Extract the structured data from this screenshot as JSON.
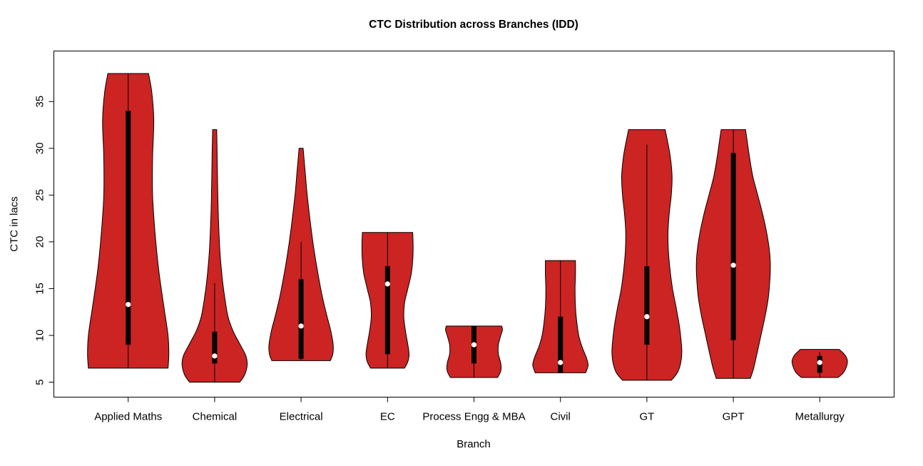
{
  "chart_data": {
    "type": "violin",
    "title": "CTC Distribution across Branches (IDD)",
    "xlabel": "Branch",
    "ylabel": "CTC in lacs",
    "ylim": [
      3.4,
      40.4
    ],
    "yticks": [
      5,
      10,
      15,
      20,
      25,
      30,
      35
    ],
    "grid": false,
    "legend": "none",
    "fill_color": "#CB2423",
    "outline_color": "#000000",
    "categories": [
      "Applied Maths",
      "Chemical",
      "Electrical",
      "EC",
      "Process Engg & MBA",
      "Civil",
      "GT",
      "GPT",
      "Metallurgy"
    ],
    "violins": [
      {
        "branch": "Applied Maths",
        "min": 6.5,
        "max": 38,
        "q1": 9,
        "median": 13.3,
        "q3": 34,
        "whisker_low": 6.5,
        "whisker_high": 38,
        "profile": [
          [
            6.5,
            0.98
          ],
          [
            8,
            1.0
          ],
          [
            10,
            0.98
          ],
          [
            13,
            0.88
          ],
          [
            17,
            0.75
          ],
          [
            21,
            0.66
          ],
          [
            25,
            0.6
          ],
          [
            29,
            0.6
          ],
          [
            33,
            0.63
          ],
          [
            36,
            0.58
          ],
          [
            38,
            0.5
          ]
        ]
      },
      {
        "branch": "Chemical",
        "min": 5,
        "max": 32,
        "q1": 7,
        "median": 7.8,
        "q3": 10.4,
        "whisker_low": 5,
        "whisker_high": 15.6,
        "profile": [
          [
            5,
            0.62
          ],
          [
            5.8,
            0.74
          ],
          [
            6.8,
            0.8
          ],
          [
            7.8,
            0.77
          ],
          [
            9,
            0.63
          ],
          [
            10.5,
            0.45
          ],
          [
            12,
            0.33
          ],
          [
            14,
            0.25
          ],
          [
            16,
            0.19
          ],
          [
            19,
            0.13
          ],
          [
            23,
            0.09
          ],
          [
            27,
            0.07
          ],
          [
            30,
            0.06
          ],
          [
            32,
            0.05
          ]
        ]
      },
      {
        "branch": "Electrical",
        "min": 7.3,
        "max": 30,
        "q1": 7.5,
        "median": 11,
        "q3": 16,
        "whisker_low": 7.3,
        "whisker_high": 20,
        "profile": [
          [
            7.3,
            0.72
          ],
          [
            8,
            0.78
          ],
          [
            9,
            0.79
          ],
          [
            10.5,
            0.73
          ],
          [
            12,
            0.64
          ],
          [
            14,
            0.53
          ],
          [
            16,
            0.44
          ],
          [
            18,
            0.36
          ],
          [
            20,
            0.29
          ],
          [
            22,
            0.23
          ],
          [
            25,
            0.15
          ],
          [
            27.5,
            0.1
          ],
          [
            30,
            0.05
          ]
        ]
      },
      {
        "branch": "EC",
        "min": 6.5,
        "max": 21,
        "q1": 8,
        "median": 15.5,
        "q3": 17.4,
        "whisker_low": 6.5,
        "whisker_high": 21,
        "profile": [
          [
            6.5,
            0.42
          ],
          [
            7.2,
            0.5
          ],
          [
            8,
            0.53
          ],
          [
            9,
            0.5
          ],
          [
            10.5,
            0.44
          ],
          [
            12,
            0.4
          ],
          [
            13.5,
            0.42
          ],
          [
            15,
            0.5
          ],
          [
            16.5,
            0.58
          ],
          [
            18,
            0.62
          ],
          [
            19.5,
            0.63
          ],
          [
            21,
            0.62
          ]
        ]
      },
      {
        "branch": "Process Engg & MBA",
        "min": 5.5,
        "max": 11,
        "q1": 7,
        "median": 9,
        "q3": 11,
        "whisker_low": 5.5,
        "whisker_high": 11,
        "profile": [
          [
            5.5,
            0.58
          ],
          [
            6.2,
            0.66
          ],
          [
            7,
            0.66
          ],
          [
            8,
            0.6
          ],
          [
            9,
            0.6
          ],
          [
            10,
            0.66
          ],
          [
            10.6,
            0.7
          ],
          [
            11,
            0.68
          ]
        ]
      },
      {
        "branch": "Civil",
        "min": 6,
        "max": 18,
        "q1": 6,
        "median": 7.1,
        "q3": 12,
        "whisker_low": 6,
        "whisker_high": 18,
        "profile": [
          [
            6,
            0.62
          ],
          [
            6.8,
            0.68
          ],
          [
            7.6,
            0.64
          ],
          [
            8.8,
            0.53
          ],
          [
            10,
            0.45
          ],
          [
            11.5,
            0.4
          ],
          [
            13,
            0.37
          ],
          [
            15,
            0.36
          ],
          [
            16.5,
            0.37
          ],
          [
            18,
            0.37
          ]
        ]
      },
      {
        "branch": "GT",
        "min": 5.2,
        "max": 32,
        "q1": 9,
        "median": 12,
        "q3": 17.4,
        "whisker_low": 5.2,
        "whisker_high": 30.4,
        "profile": [
          [
            5.2,
            0.6
          ],
          [
            6,
            0.75
          ],
          [
            7,
            0.83
          ],
          [
            8.2,
            0.86
          ],
          [
            9.5,
            0.84
          ],
          [
            11,
            0.8
          ],
          [
            13,
            0.72
          ],
          [
            15,
            0.63
          ],
          [
            17,
            0.57
          ],
          [
            19,
            0.53
          ],
          [
            21,
            0.52
          ],
          [
            23,
            0.55
          ],
          [
            25,
            0.6
          ],
          [
            27,
            0.62
          ],
          [
            29,
            0.58
          ],
          [
            30.5,
            0.52
          ],
          [
            32,
            0.45
          ]
        ]
      },
      {
        "branch": "GPT",
        "min": 5.4,
        "max": 32,
        "q1": 9.5,
        "median": 17.5,
        "q3": 29.5,
        "whisker_low": 5.4,
        "whisker_high": 32,
        "profile": [
          [
            5.4,
            0.42
          ],
          [
            6.5,
            0.5
          ],
          [
            8,
            0.58
          ],
          [
            10,
            0.68
          ],
          [
            12,
            0.78
          ],
          [
            14,
            0.86
          ],
          [
            16,
            0.9
          ],
          [
            17.5,
            0.91
          ],
          [
            19,
            0.89
          ],
          [
            21,
            0.82
          ],
          [
            23,
            0.72
          ],
          [
            25,
            0.6
          ],
          [
            27,
            0.48
          ],
          [
            29,
            0.4
          ],
          [
            30.5,
            0.35
          ],
          [
            32,
            0.3
          ]
        ]
      },
      {
        "branch": "Metallurgy",
        "min": 5.5,
        "max": 8.5,
        "q1": 6,
        "median": 7.1,
        "q3": 7.8,
        "whisker_low": 5.5,
        "whisker_high": 8.2,
        "profile": [
          [
            5.5,
            0.45
          ],
          [
            6,
            0.58
          ],
          [
            6.7,
            0.66
          ],
          [
            7.3,
            0.68
          ],
          [
            7.9,
            0.62
          ],
          [
            8.5,
            0.48
          ]
        ]
      }
    ]
  }
}
